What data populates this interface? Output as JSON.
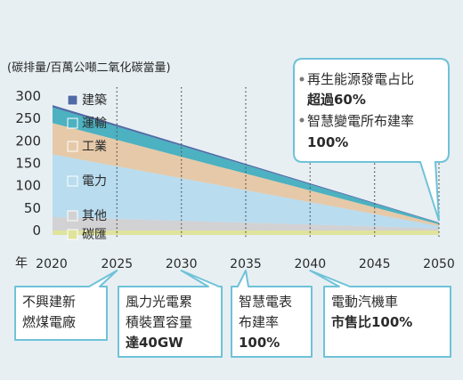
{
  "colors": {
    "background": "#e7eff3",
    "building": "#4f6aa6",
    "transport": "#4cb1c0",
    "industry": "#e6c9a8",
    "power": "#b9dcef",
    "other": "#d2d1d3",
    "sink": "#e0e39c",
    "callout_border": "#6fc2d8",
    "grid": "#555555"
  },
  "chart_data": {
    "type": "area",
    "title": "",
    "unit_label": "(碳排量/百萬公噸二氧化碳當量)",
    "x_axis_label": "年",
    "x": [
      2020,
      2050
    ],
    "x_ticks": [
      2020,
      2025,
      2030,
      2035,
      2040,
      2045,
      2050
    ],
    "xlim": [
      2020,
      2050
    ],
    "y_ticks": [
      0,
      50,
      100,
      150,
      200,
      250,
      300
    ],
    "ylim": [
      -10,
      300
    ],
    "grid": "dotted vertical lines at 2025, 2030, 2035, 2040, 2045, 2050",
    "stacked": true,
    "series": [
      {
        "name": "碳匯",
        "color_key": "sink",
        "values": [
          -10,
          -10
        ]
      },
      {
        "name": "其他",
        "color_key": "other",
        "values": [
          30,
          5
        ]
      },
      {
        "name": "電力",
        "color_key": "power",
        "values": [
          140,
          5
        ]
      },
      {
        "name": "工業",
        "color_key": "industry",
        "values": [
          70,
          4
        ]
      },
      {
        "name": "運輸",
        "color_key": "transport",
        "values": [
          35,
          3
        ]
      },
      {
        "name": "建築",
        "color_key": "building",
        "values": [
          5,
          1
        ]
      }
    ]
  },
  "callouts": {
    "target_2050": [
      "再生能源發電占比",
      "超過60%",
      "智慧變電所布建率",
      "100%"
    ],
    "milestones": [
      {
        "year": 2025,
        "lines": [
          "不興建新",
          "燃煤電廠"
        ]
      },
      {
        "year": 2030,
        "lines": [
          "風力光電累",
          "積裝置容量",
          "達40GW"
        ]
      },
      {
        "year": 2035,
        "lines": [
          "智慧電表",
          "布建率",
          "100%"
        ]
      },
      {
        "year": 2040,
        "lines": [
          "電動汽機車",
          "市售比100%"
        ]
      }
    ]
  }
}
